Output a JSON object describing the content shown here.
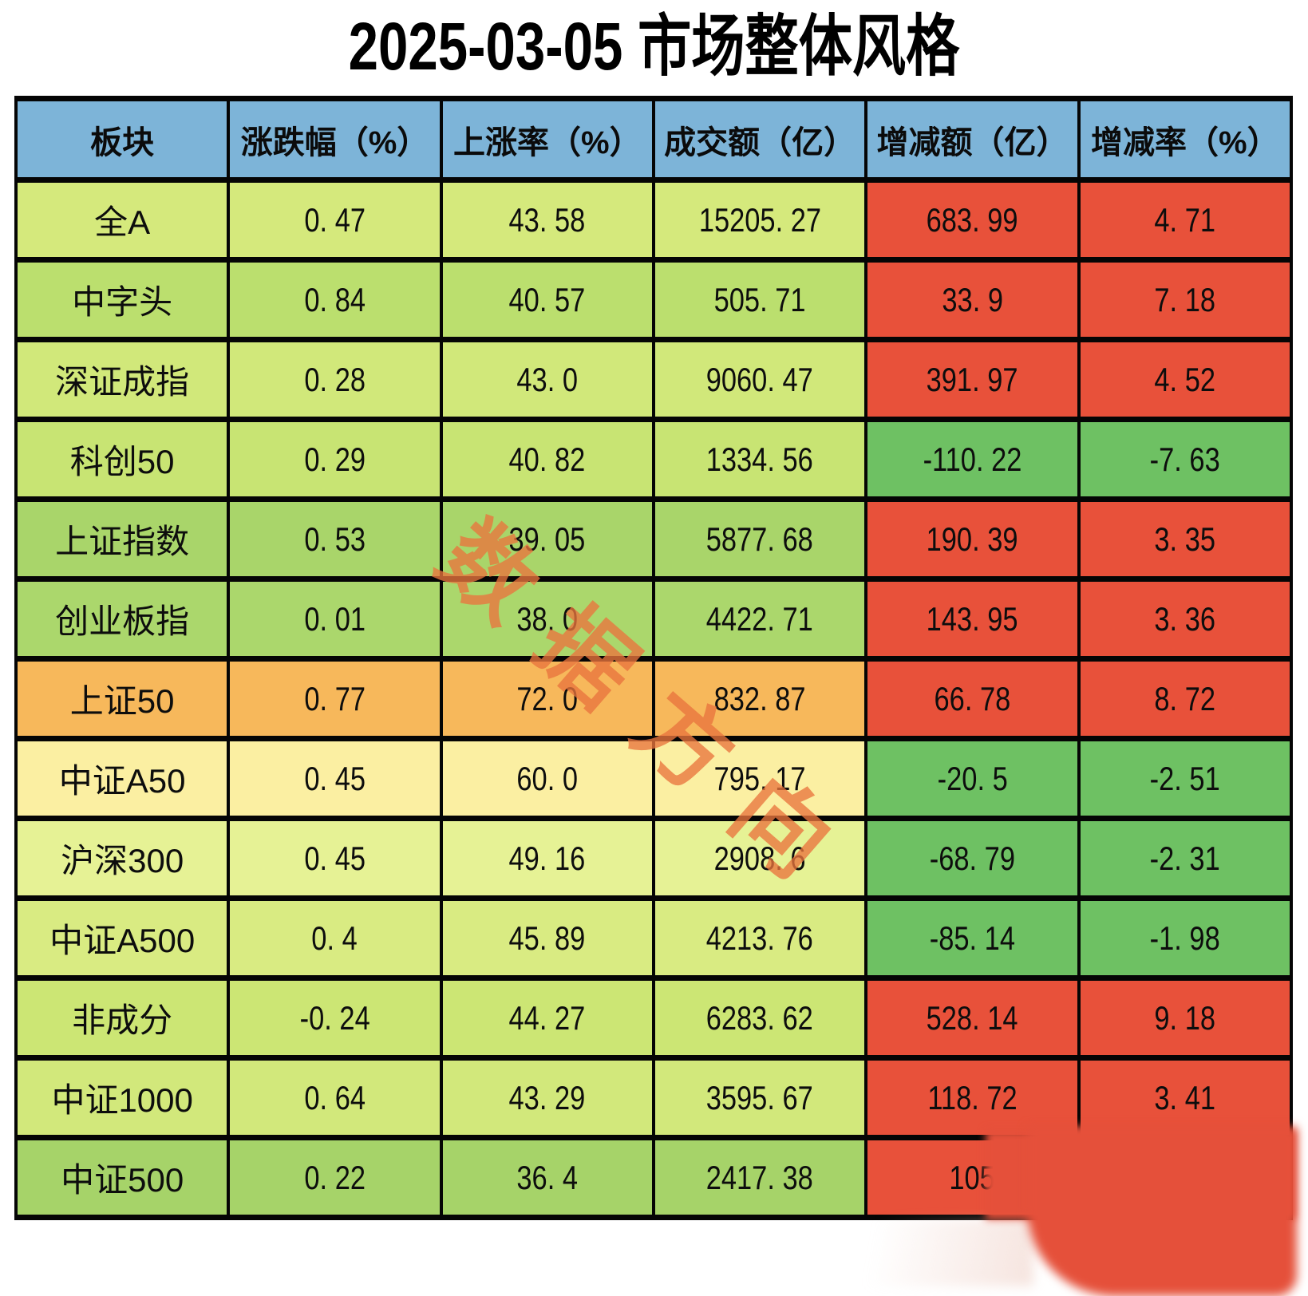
{
  "title": "2025-03-05 市场整体风格",
  "watermark": {
    "text": "数据方向",
    "color": "rgba(233,117,61,0.78)"
  },
  "overlay": {
    "smudge_color": "#e5503a"
  },
  "table": {
    "border_color": "#050505",
    "header": {
      "bg": "#7db4d8",
      "labels": [
        "板块",
        "涨跌幅（%）",
        "上涨率（%）",
        "成交额（亿）",
        "增减额（亿）",
        "增减率（%）"
      ]
    },
    "value_colors": {
      "positive_bg": "#e8513a",
      "negative_bg": "#6ec163"
    },
    "rows": [
      {
        "sector": "全A",
        "change_pct": "0. 47",
        "rise_rate": "43. 58",
        "turnover": "15205. 27",
        "delta_amount": "683. 99",
        "delta_rate": "4. 71",
        "row_bg": "#d5e97c",
        "delta_amount_bg": "#e8513a",
        "delta_rate_bg": "#e8513a",
        "delta_amount_truncated": false
      },
      {
        "sector": "中字头",
        "change_pct": "0. 84",
        "rise_rate": "40. 57",
        "turnover": "505. 71",
        "delta_amount": "33. 9",
        "delta_rate": "7. 18",
        "row_bg": "#bbdf6e",
        "delta_amount_bg": "#e8513a",
        "delta_rate_bg": "#e8513a",
        "delta_amount_truncated": false
      },
      {
        "sector": "深证成指",
        "change_pct": "0. 28",
        "rise_rate": "43. 0",
        "turnover": "9060. 47",
        "delta_amount": "391. 97",
        "delta_rate": "4. 52",
        "row_bg": "#d1e87a",
        "delta_amount_bg": "#e8513a",
        "delta_rate_bg": "#e8513a",
        "delta_amount_truncated": false
      },
      {
        "sector": "科创50",
        "change_pct": "0. 29",
        "rise_rate": "40. 82",
        "turnover": "1334. 56",
        "delta_amount": "-110. 22",
        "delta_rate": "-7. 63",
        "row_bg": "#c8e473",
        "delta_amount_bg": "#6ec163",
        "delta_rate_bg": "#6ec163",
        "delta_amount_truncated": false
      },
      {
        "sector": "上证指数",
        "change_pct": "0. 53",
        "rise_rate": "39. 05",
        "turnover": "5877. 68",
        "delta_amount": "190. 39",
        "delta_rate": "3. 35",
        "row_bg": "#a9d56a",
        "delta_amount_bg": "#e8513a",
        "delta_rate_bg": "#e8513a",
        "delta_amount_truncated": false
      },
      {
        "sector": "创业板指",
        "change_pct": "0. 01",
        "rise_rate": "38. 0",
        "turnover": "4422. 71",
        "delta_amount": "143. 95",
        "delta_rate": "3. 36",
        "row_bg": "#abd76c",
        "delta_amount_bg": "#e8513a",
        "delta_rate_bg": "#e8513a",
        "delta_amount_truncated": false
      },
      {
        "sector": "上证50",
        "change_pct": "0. 77",
        "rise_rate": "72. 0",
        "turnover": "832. 87",
        "delta_amount": "66. 78",
        "delta_rate": "8. 72",
        "row_bg": "#f7b85b",
        "delta_amount_bg": "#e8513a",
        "delta_rate_bg": "#e8513a",
        "delta_amount_truncated": false
      },
      {
        "sector": "中证A50",
        "change_pct": "0. 45",
        "rise_rate": "60. 0",
        "turnover": "795. 17",
        "delta_amount": "-20. 5",
        "delta_rate": "-2. 51",
        "row_bg": "#fbefa2",
        "delta_amount_bg": "#6ec163",
        "delta_rate_bg": "#6ec163",
        "delta_amount_truncated": false
      },
      {
        "sector": "沪深300",
        "change_pct": "0. 45",
        "rise_rate": "49. 16",
        "turnover": "2908. 6",
        "delta_amount": "-68. 79",
        "delta_rate": "-2. 31",
        "row_bg": "#e6f295",
        "delta_amount_bg": "#6ec163",
        "delta_rate_bg": "#6ec163",
        "delta_amount_truncated": false
      },
      {
        "sector": "中证A500",
        "change_pct": "0. 4",
        "rise_rate": "45. 89",
        "turnover": "4213. 76",
        "delta_amount": "-85. 14",
        "delta_rate": "-1. 98",
        "row_bg": "#d9eb82",
        "delta_amount_bg": "#6ec163",
        "delta_rate_bg": "#6ec163",
        "delta_amount_truncated": false
      },
      {
        "sector": "非成分",
        "change_pct": "-0. 24",
        "rise_rate": "44. 27",
        "turnover": "6283. 62",
        "delta_amount": "528. 14",
        "delta_rate": "9. 18",
        "row_bg": "#cce674",
        "delta_amount_bg": "#e8513a",
        "delta_rate_bg": "#e8513a",
        "delta_amount_truncated": false
      },
      {
        "sector": "中证1000",
        "change_pct": "0. 64",
        "rise_rate": "43. 29",
        "turnover": "3595. 67",
        "delta_amount": "118. 72",
        "delta_rate": "3. 41",
        "row_bg": "#d2e87b",
        "delta_amount_bg": "#e8513a",
        "delta_rate_bg": "#e8513a",
        "delta_amount_truncated": false
      },
      {
        "sector": "中证500",
        "change_pct": "0. 22",
        "rise_rate": "36. 4",
        "turnover": "2417. 38",
        "delta_amount": "105.",
        "delta_rate": "",
        "row_bg": "#a6d369",
        "delta_amount_bg": "#e8513a",
        "delta_rate_bg": "#e8513a",
        "delta_amount_truncated": true
      }
    ]
  },
  "chart_data": {
    "type": "table",
    "title": "2025-03-05 市场整体风格",
    "columns": [
      "板块",
      "涨跌幅（%）",
      "上涨率（%）",
      "成交额（亿）",
      "增减额（亿）",
      "增减率（%）"
    ],
    "rows": [
      [
        "全A",
        0.47,
        43.58,
        15205.27,
        683.99,
        4.71
      ],
      [
        "中字头",
        0.84,
        40.57,
        505.71,
        33.9,
        7.18
      ],
      [
        "深证成指",
        0.28,
        43.0,
        9060.47,
        391.97,
        4.52
      ],
      [
        "科创50",
        0.29,
        40.82,
        1334.56,
        -110.22,
        -7.63
      ],
      [
        "上证指数",
        0.53,
        39.05,
        5877.68,
        190.39,
        3.35
      ],
      [
        "创业板指",
        0.01,
        38.0,
        4422.71,
        143.95,
        3.36
      ],
      [
        "上证50",
        0.77,
        72.0,
        832.87,
        66.78,
        8.72
      ],
      [
        "中证A50",
        0.45,
        60.0,
        795.17,
        -20.5,
        -2.51
      ],
      [
        "沪深300",
        0.45,
        49.16,
        2908.6,
        -68.79,
        -2.31
      ],
      [
        "中证A500",
        0.4,
        45.89,
        4213.76,
        -85.14,
        -1.98
      ],
      [
        "非成分",
        -0.24,
        44.27,
        6283.62,
        528.14,
        9.18
      ],
      [
        "中证1000",
        0.64,
        43.29,
        3595.67,
        118.72,
        3.41
      ],
      [
        "中证500",
        0.22,
        36.4,
        2417.38,
        "105.",
        null
      ]
    ],
    "notes": "Last row: 增减额 shows only '105.' and 增减率 is fully hidden under a red blurred smudge overlay in the bottom-right corner.",
    "legend_colors": {
      "positive_cell": "#e8513a",
      "negative_cell": "#6ec163",
      "header": "#7db4d8"
    }
  }
}
